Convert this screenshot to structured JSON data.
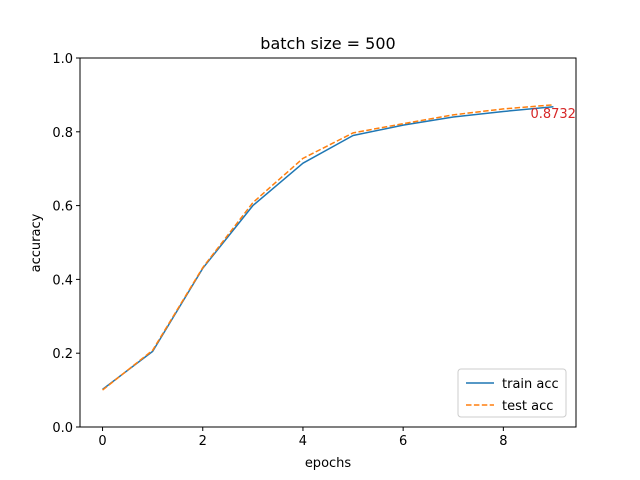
{
  "chart_data": {
    "type": "line",
    "title": "batch size = 500",
    "xlabel": "epochs",
    "ylabel": "accuracy",
    "xlim": [
      -0.45,
      9.45
    ],
    "ylim": [
      0.0,
      1.0
    ],
    "xticks": [
      0,
      2,
      4,
      6,
      8
    ],
    "xtick_labels": [
      "0",
      "2",
      "4",
      "6",
      "8"
    ],
    "yticks": [
      0.0,
      0.2,
      0.4,
      0.6,
      0.8,
      1.0
    ],
    "ytick_labels": [
      "0.0",
      "0.2",
      "0.4",
      "0.6",
      "0.8",
      "1.0"
    ],
    "grid": false,
    "legend_position": "lower-right",
    "x": [
      0,
      1,
      2,
      3,
      4,
      5,
      6,
      7,
      8,
      9
    ],
    "series": [
      {
        "name": "train acc",
        "color": "#1f77b4",
        "style": "solid",
        "values": [
          0.102,
          0.205,
          0.43,
          0.6,
          0.715,
          0.79,
          0.818,
          0.84,
          0.855,
          0.868
        ]
      },
      {
        "name": "test acc",
        "color": "#ff7f0e",
        "style": "dashed",
        "values": [
          0.1,
          0.208,
          0.432,
          0.608,
          0.728,
          0.797,
          0.822,
          0.846,
          0.862,
          0.8732
        ]
      }
    ],
    "annotations": [
      {
        "text": "0.8732",
        "x": 9,
        "y": 0.8732,
        "color": "#d62728"
      }
    ]
  }
}
